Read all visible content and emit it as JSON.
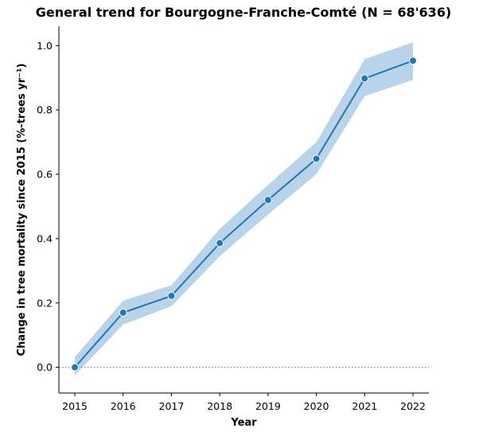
{
  "chart_data": {
    "type": "line",
    "title": "General trend for Bourgogne-Franche-Comté  (N = 68'636)",
    "xlabel": "Year",
    "ylabel": "Change in tree mortality since 2015 (%-trees yr⁻¹)",
    "x": [
      2015,
      2016,
      2017,
      2018,
      2019,
      2020,
      2021,
      2022
    ],
    "series": [
      {
        "values": [
          0.0,
          0.17,
          0.222,
          0.386,
          0.52,
          0.648,
          0.898,
          0.953
        ],
        "ci_lower": [
          -0.025,
          0.133,
          0.19,
          0.345,
          0.475,
          0.6,
          0.843,
          0.893
        ],
        "ci_upper": [
          0.032,
          0.207,
          0.255,
          0.43,
          0.567,
          0.7,
          0.958,
          1.01
        ]
      }
    ],
    "xticks": [
      "2015",
      "2016",
      "2017",
      "2018",
      "2019",
      "2020",
      "2021",
      "2022"
    ],
    "yticks": [
      "0.0",
      "0.2",
      "0.4",
      "0.6",
      "0.8",
      "1.0"
    ],
    "ylim": [
      -0.08,
      1.06
    ],
    "reference_line": 0.0,
    "grid": false,
    "colors": {
      "line": "#1f77b4",
      "band": "#a8c9e5",
      "reference": "#888888"
    }
  }
}
